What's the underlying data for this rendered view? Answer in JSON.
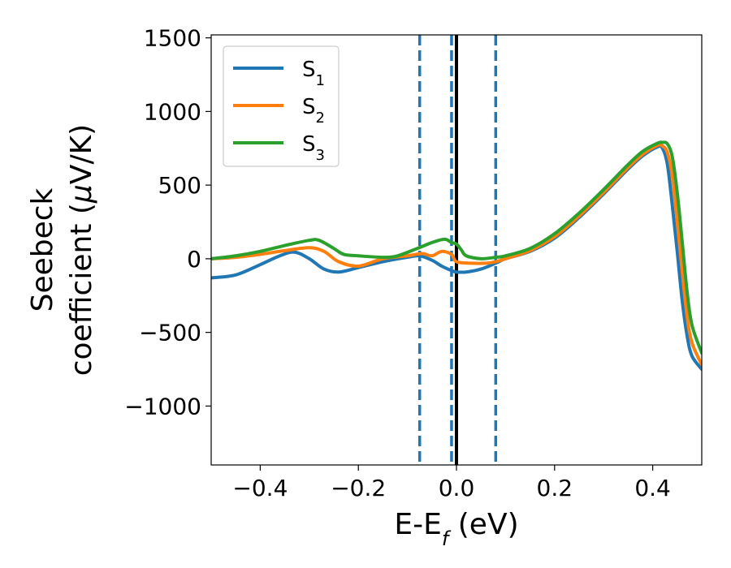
{
  "chart_data": {
    "type": "line",
    "title": "",
    "xlabel": "E-E",
    "xlabel_sub": "f",
    "xlabel_unit": " (eV)",
    "ylabel_line1": "Seebeck",
    "ylabel_line2": "coefficient  (",
    "ylabel_mu": "μ",
    "ylabel_unit": "V/K)",
    "xlim": [
      -0.5,
      0.5
    ],
    "ylim": [
      -1400,
      1520
    ],
    "xticks": [
      -0.4,
      -0.2,
      0.0,
      0.2,
      0.4
    ],
    "xtick_labels": [
      "−0.4",
      "−0.2",
      "0.0",
      "0.2",
      "0.4"
    ],
    "yticks": [
      -1000,
      -500,
      0,
      500,
      1000,
      1500
    ],
    "ytick_labels": [
      "−1000",
      "−500",
      "0",
      "500",
      "1000",
      "1500"
    ],
    "grid": false,
    "legend_position": "top-left",
    "vlines": [
      {
        "x": -0.075,
        "style": "dashed",
        "color": "#1f77b4"
      },
      {
        "x": -0.01,
        "style": "dashed",
        "color": "#1f77b4"
      },
      {
        "x": 0.08,
        "style": "dashed",
        "color": "#1f77b4"
      },
      {
        "x": 0.0,
        "style": "solid",
        "color": "#000000"
      }
    ],
    "series": [
      {
        "name": "S",
        "sub": "1",
        "color": "#1f77b4",
        "x": [
          -0.5,
          -0.45,
          -0.4,
          -0.36,
          -0.33,
          -0.3,
          -0.27,
          -0.24,
          -0.2,
          -0.15,
          -0.1,
          -0.075,
          -0.05,
          -0.03,
          -0.01,
          0.0,
          0.02,
          0.05,
          0.08,
          0.1,
          0.15,
          0.2,
          0.25,
          0.3,
          0.35,
          0.38,
          0.41,
          0.42,
          0.43,
          0.44,
          0.45,
          0.46,
          0.47,
          0.48,
          0.5
        ],
        "y": [
          -130,
          -110,
          -40,
          20,
          45,
          0,
          -70,
          -90,
          -60,
          -20,
          10,
          20,
          -10,
          -50,
          -80,
          -90,
          -90,
          -70,
          -30,
          0,
          50,
          140,
          280,
          440,
          610,
          700,
          760,
          750,
          640,
          360,
          50,
          -280,
          -520,
          -660,
          -750
        ]
      },
      {
        "name": "S",
        "sub": "2",
        "color": "#ff7f0e",
        "x": [
          -0.5,
          -0.45,
          -0.4,
          -0.35,
          -0.3,
          -0.27,
          -0.24,
          -0.2,
          -0.15,
          -0.1,
          -0.07,
          -0.05,
          -0.03,
          -0.01,
          0.0,
          0.03,
          0.06,
          0.08,
          0.1,
          0.15,
          0.2,
          0.25,
          0.3,
          0.35,
          0.38,
          0.41,
          0.42,
          0.43,
          0.44,
          0.45,
          0.46,
          0.47,
          0.48,
          0.5
        ],
        "y": [
          0,
          10,
          30,
          55,
          75,
          50,
          -20,
          -50,
          0,
          20,
          35,
          20,
          50,
          30,
          -20,
          -30,
          -30,
          -20,
          0,
          55,
          150,
          290,
          450,
          620,
          710,
          770,
          765,
          720,
          560,
          250,
          -80,
          -390,
          -570,
          -720
        ]
      },
      {
        "name": "S",
        "sub": "3",
        "color": "#2ca02c",
        "x": [
          -0.5,
          -0.45,
          -0.4,
          -0.35,
          -0.3,
          -0.28,
          -0.25,
          -0.23,
          -0.2,
          -0.15,
          -0.12,
          -0.08,
          -0.05,
          -0.03,
          -0.02,
          -0.01,
          0.0,
          0.01,
          0.02,
          0.05,
          0.08,
          0.1,
          0.15,
          0.2,
          0.25,
          0.3,
          0.35,
          0.38,
          0.41,
          0.42,
          0.43,
          0.44,
          0.45,
          0.46,
          0.47,
          0.48,
          0.5
        ],
        "y": [
          0,
          20,
          50,
          90,
          125,
          125,
          70,
          30,
          20,
          10,
          20,
          70,
          110,
          130,
          130,
          110,
          100,
          60,
          20,
          0,
          10,
          20,
          70,
          170,
          310,
          470,
          640,
          730,
          785,
          790,
          780,
          690,
          450,
          120,
          -220,
          -450,
          -640
        ]
      }
    ]
  }
}
